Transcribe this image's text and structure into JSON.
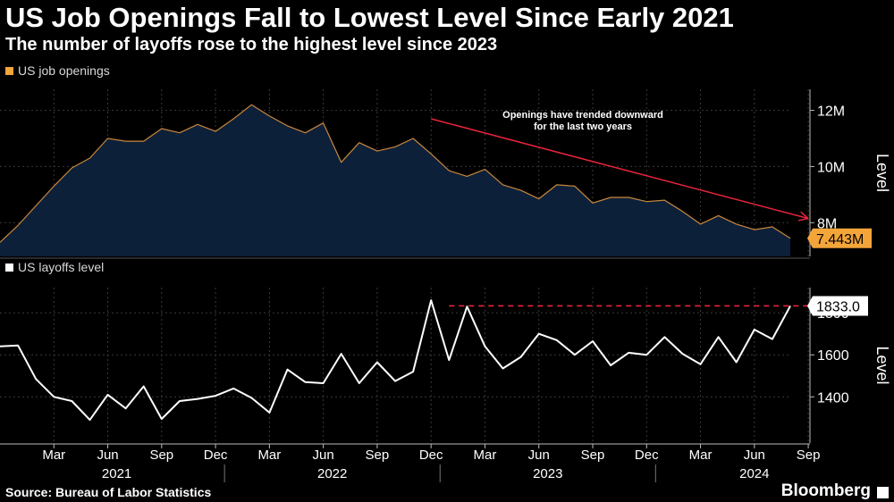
{
  "header": {
    "title": "US Job Openings Fall to Lowest Level Since Early 2021",
    "subtitle": "The number of layoffs rose to the highest level since 2023"
  },
  "footer": {
    "source": "Source: Bureau of Labor Statistics",
    "brand": "Bloomberg"
  },
  "chart_data": [
    {
      "type": "area",
      "legend": "US job openings",
      "legend_color": "#f4a53a",
      "line_color": "#c9873b",
      "fill_color": "#0d2039",
      "axis_label": "Level",
      "yticks": [
        8000000,
        10000000,
        12000000
      ],
      "ytick_labels": [
        "8M",
        "10M",
        "12M"
      ],
      "ylim": [
        6800000,
        12750000
      ],
      "last_value_label": "7.443M",
      "grid": true,
      "x_start": "2020-12",
      "values": [
        7300000,
        7900000,
        8600000,
        9300000,
        9950000,
        10300000,
        11000000,
        10900000,
        10900000,
        11350000,
        11200000,
        11500000,
        11250000,
        11700000,
        12200000,
        11800000,
        11450000,
        11200000,
        11550000,
        10150000,
        10850000,
        10550000,
        10700000,
        11000000,
        10450000,
        9850000,
        9650000,
        9900000,
        9350000,
        9150000,
        8850000,
        9350000,
        9300000,
        8700000,
        8900000,
        8900000,
        8750000,
        8800000,
        8400000,
        7950000,
        8250000,
        7950000,
        7750000,
        7850000,
        7443000
      ],
      "annotations": [
        {
          "text_lines": [
            "Openings have trended downward",
            "for the last two years"
          ],
          "arrow_from": {
            "x": "2022-12",
            "y": 11700000
          },
          "arrow_to": {
            "x": "2024-09",
            "y": 8150000
          },
          "color": "#e8243c"
        }
      ]
    },
    {
      "type": "line",
      "legend": "US layoffs level",
      "legend_color": "#ffffff",
      "line_color": "#ffffff",
      "axis_label": "Level",
      "yticks": [
        1400,
        1600,
        1800
      ],
      "ytick_labels": [
        "1400",
        "1600",
        "1800"
      ],
      "ylim": [
        1180,
        1920
      ],
      "last_value_label": "1833.0",
      "grid": true,
      "x_start": "2020-12",
      "values": [
        1640,
        1645,
        1485,
        1400,
        1380,
        1290,
        1410,
        1345,
        1450,
        1295,
        1380,
        1390,
        1405,
        1440,
        1395,
        1325,
        1530,
        1470,
        1465,
        1605,
        1465,
        1565,
        1475,
        1520,
        1860,
        1575,
        1830,
        1640,
        1535,
        1590,
        1700,
        1670,
        1600,
        1665,
        1550,
        1610,
        1600,
        1685,
        1605,
        1555,
        1685,
        1565,
        1720,
        1675,
        1833
      ],
      "reference_line": {
        "value": 1833,
        "from": "2023-01",
        "color": "#e8243c",
        "style": "dashed"
      }
    }
  ],
  "x_axis": {
    "month_labels": [
      {
        "x": "2021-03",
        "label": "Mar"
      },
      {
        "x": "2021-06",
        "label": "Jun"
      },
      {
        "x": "2021-09",
        "label": "Sep"
      },
      {
        "x": "2021-12",
        "label": "Dec"
      },
      {
        "x": "2022-03",
        "label": "Mar"
      },
      {
        "x": "2022-06",
        "label": "Jun"
      },
      {
        "x": "2022-09",
        "label": "Sep"
      },
      {
        "x": "2022-12",
        "label": "Dec"
      },
      {
        "x": "2023-03",
        "label": "Mar"
      },
      {
        "x": "2023-06",
        "label": "Jun"
      },
      {
        "x": "2023-09",
        "label": "Sep"
      },
      {
        "x": "2023-12",
        "label": "Dec"
      },
      {
        "x": "2024-03",
        "label": "Mar"
      },
      {
        "x": "2024-06",
        "label": "Jun"
      },
      {
        "x": "2024-09",
        "label": "Sep"
      }
    ],
    "year_labels": [
      "2021",
      "2022",
      "2023",
      "2024"
    ]
  }
}
